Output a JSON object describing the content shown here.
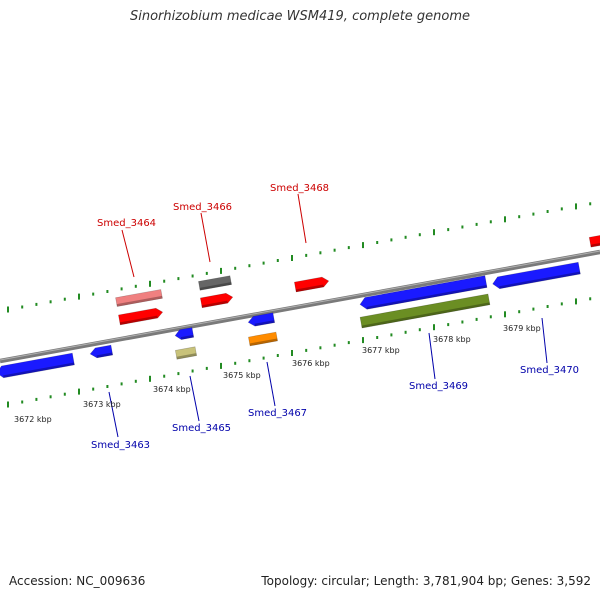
{
  "title": "Sinorhizobium medicae WSM419, complete genome",
  "footer": {
    "accession": "Accession: NC_009636",
    "summary": "Topology: circular; Length: 3,781,904 bp; Genes: 3,592"
  },
  "colors": {
    "backbone": "#888888",
    "ticks": "#228b22",
    "forward_label": "#cc0000",
    "reverse_label": "#0000aa",
    "gene_red": "#ff0000",
    "gene_blue": "#1a1aff",
    "gene_pink": "#f08080",
    "gene_darkgray": "#666666",
    "gene_olive": "#6b8e23",
    "gene_tan": "#c8c27a",
    "gene_orange": "#ff8c00"
  },
  "axis": {
    "unit": "kbp",
    "labels": [
      "3672 kbp",
      "3673 kbp",
      "3674 kbp",
      "3675 kbp",
      "3676 kbp",
      "3677 kbp",
      "3678 kbp",
      "3679 kbp"
    ]
  },
  "genes": [
    {
      "label": "Smed_3464",
      "strand": "forward"
    },
    {
      "label": "Smed_3466",
      "strand": "forward"
    },
    {
      "label": "Smed_3468",
      "strand": "forward"
    },
    {
      "label": "Smed_3463",
      "strand": "reverse"
    },
    {
      "label": "Smed_3465",
      "strand": "reverse"
    },
    {
      "label": "Smed_3467",
      "strand": "reverse"
    },
    {
      "label": "Smed_3469",
      "strand": "reverse"
    },
    {
      "label": "Smed_3470",
      "strand": "reverse"
    }
  ]
}
